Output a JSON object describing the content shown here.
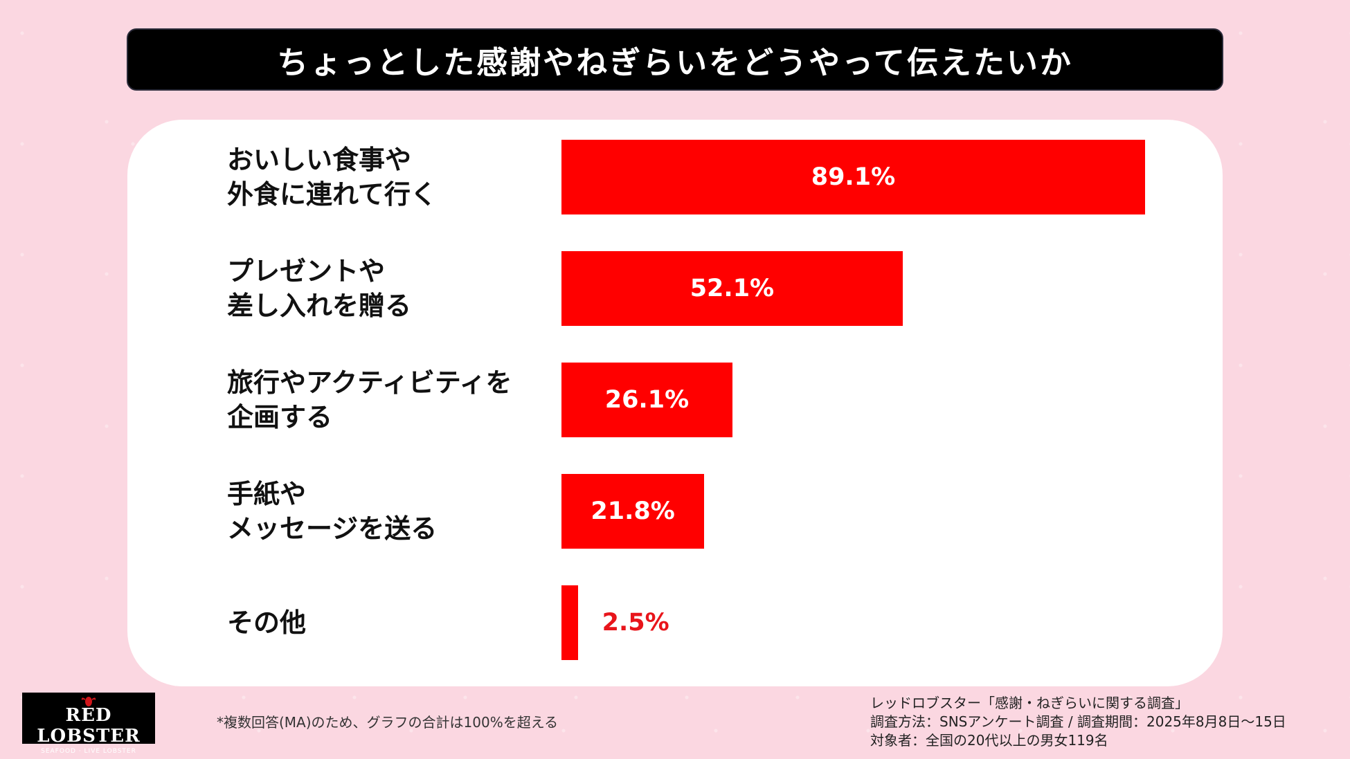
{
  "title": "ちょっとした感謝やねぎらいをどうやって伝えたいか",
  "chart_data": {
    "type": "bar",
    "orientation": "horizontal",
    "title": "ちょっとした感謝やねぎらいをどうやって伝えたいか",
    "categories": [
      "おいしい食事や\n外食に連れて行く",
      "プレゼントや\n差し入れを贈る",
      "旅行やアクティビティを\n企画する",
      "手紙や\nメッセージを送る",
      "その他"
    ],
    "values": [
      89.1,
      52.1,
      26.1,
      21.8,
      2.5
    ],
    "value_labels": [
      "89.1%",
      "52.1%",
      "26.1%",
      "21.8%",
      "2.5%"
    ],
    "unit": "%",
    "xlim": [
      0,
      100
    ],
    "grid": false,
    "bar_color": "#ff0000"
  },
  "footnote": "*複数回答(MA)のため、グラフの合計は100%を超える",
  "source": {
    "line1": "レッドロブスター「感謝・ねぎらいに関する調査」",
    "line2": "調査方法：SNSアンケート調査 / 調査期間：2025年8月8日〜15日",
    "line3": "対象者：全国の20代以上の男女119名"
  },
  "logo": {
    "main": "RED LOBSTER",
    "sub": "SEAFOOD · LIVE LOBSTER"
  },
  "colors": {
    "background": "#fbd7e1",
    "title_bar": "#000000",
    "bar": "#ff0000",
    "outside_label": "#e8151b"
  }
}
